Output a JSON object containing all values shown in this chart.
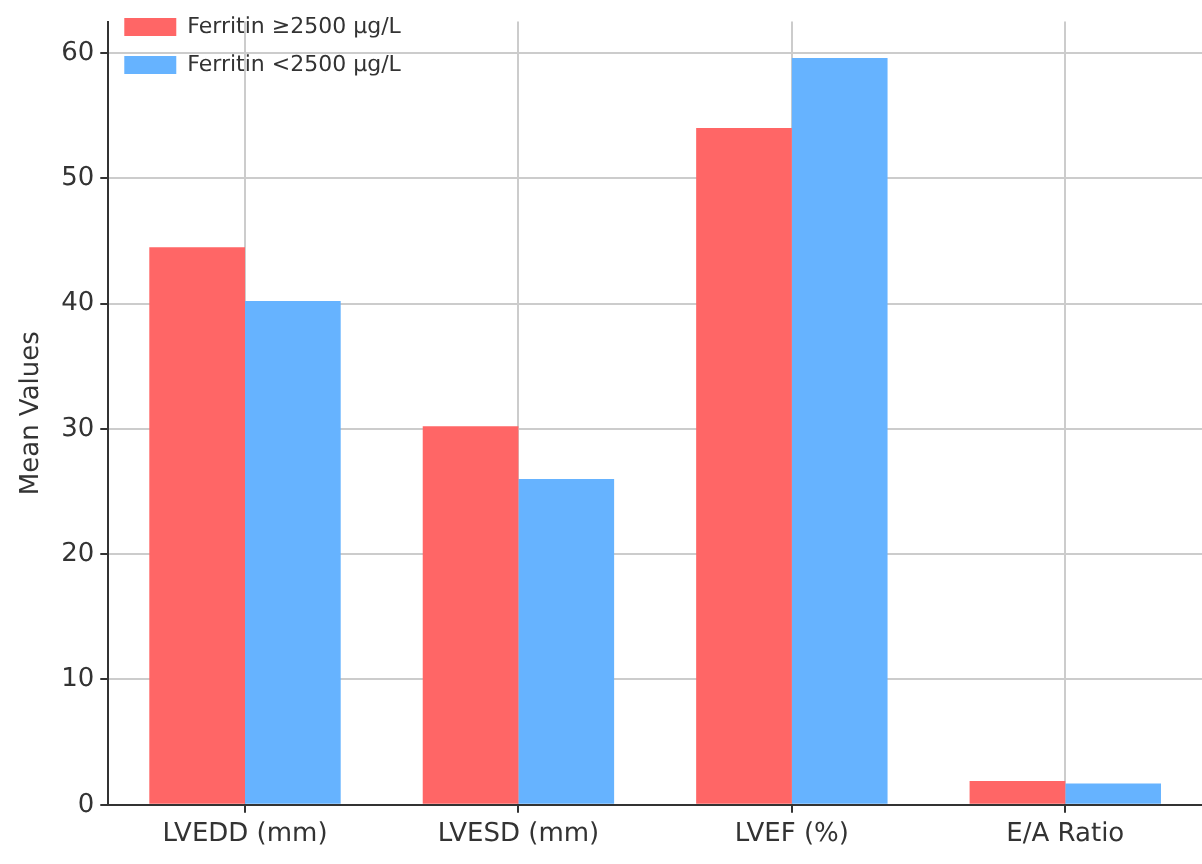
{
  "chart_data": {
    "type": "bar",
    "ylabel": "Mean Values",
    "categories": [
      "LVEDD (mm)",
      "LVESD (mm)",
      "LVEF (%)",
      "E/A Ratio"
    ],
    "series": [
      {
        "name": "Ferritin ≥2500 µg/L",
        "color": "#ff6666",
        "values": [
          44.5,
          30.2,
          54.0,
          1.9
        ]
      },
      {
        "name": "Ferritin <2500 µg/L",
        "color": "#66b3ff",
        "values": [
          40.2,
          26.0,
          59.6,
          1.7
        ]
      }
    ],
    "ylim": [
      0,
      62.5
    ],
    "yticks": [
      0,
      10,
      20,
      30,
      40,
      50,
      60
    ],
    "grid": true,
    "legend": "top left"
  }
}
